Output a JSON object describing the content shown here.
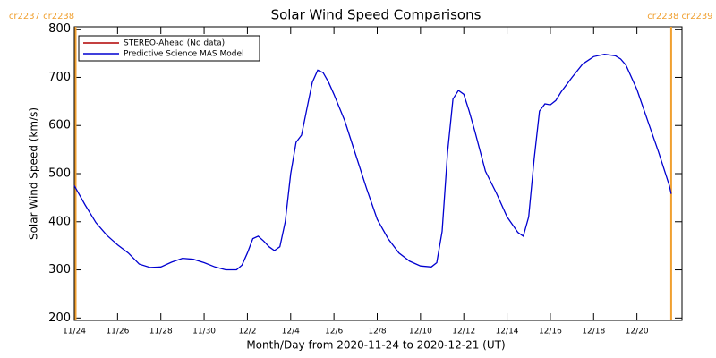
{
  "chart_data": {
    "type": "line",
    "title": "Solar Wind Speed Comparisons",
    "x_label": "Month/Day from 2020-11-24 to 2020-12-21 (UT)",
    "y_label": "Solar Wind Speed (km/s)",
    "xlim": [
      "2020-11-24T00:00",
      "2020-12-22T02:00"
    ],
    "ylim": [
      195,
      805
    ],
    "xticks": [
      {
        "value": "2020-11-24T00:00",
        "label": "11/24"
      },
      {
        "value": "2020-11-26T00:00",
        "label": "11/26"
      },
      {
        "value": "2020-11-28T00:00",
        "label": "11/28"
      },
      {
        "value": "2020-11-30T00:00",
        "label": "11/30"
      },
      {
        "value": "2020-12-02T00:00",
        "label": "12/2"
      },
      {
        "value": "2020-12-04T00:00",
        "label": "12/4"
      },
      {
        "value": "2020-12-06T00:00",
        "label": "12/6"
      },
      {
        "value": "2020-12-08T00:00",
        "label": "12/8"
      },
      {
        "value": "2020-12-10T00:00",
        "label": "12/10"
      },
      {
        "value": "2020-12-12T00:00",
        "label": "12/12"
      },
      {
        "value": "2020-12-14T00:00",
        "label": "12/14"
      },
      {
        "value": "2020-12-16T00:00",
        "label": "12/16"
      },
      {
        "value": "2020-12-18T00:00",
        "label": "12/18"
      },
      {
        "value": "2020-12-20T00:00",
        "label": "12/20"
      }
    ],
    "yticks": [
      200,
      300,
      400,
      500,
      600,
      700,
      800
    ],
    "annotations": [
      {
        "text": "cr2237 cr2238",
        "x": "2020-11-24T01:30",
        "color": "#f0a030"
      },
      {
        "text": "cr2238 cr2239",
        "x": "2020-12-21T14:00",
        "color": "#f0a030"
      }
    ],
    "series": [
      {
        "name": "STEREO-Ahead (No data)",
        "color": "#b00000",
        "x": [],
        "values": []
      },
      {
        "name": "Predictive Science MAS Model",
        "color": "#0000d0",
        "x": [
          "2020-11-24T00:00",
          "2020-11-24T12:00",
          "2020-11-25T00:00",
          "2020-11-25T12:00",
          "2020-11-26T00:00",
          "2020-11-26T12:00",
          "2020-11-27T00:00",
          "2020-11-27T12:00",
          "2020-11-28T00:00",
          "2020-11-28T12:00",
          "2020-11-29T00:00",
          "2020-11-29T12:00",
          "2020-11-30T00:00",
          "2020-11-30T12:00",
          "2020-12-01T00:00",
          "2020-12-01T12:00",
          "2020-12-01T18:00",
          "2020-12-02T00:00",
          "2020-12-02T06:00",
          "2020-12-02T12:00",
          "2020-12-02T18:00",
          "2020-12-03T00:00",
          "2020-12-03T06:00",
          "2020-12-03T12:00",
          "2020-12-03T18:00",
          "2020-12-04T00:00",
          "2020-12-04T06:00",
          "2020-12-04T12:00",
          "2020-12-04T18:00",
          "2020-12-05T00:00",
          "2020-12-05T06:00",
          "2020-12-05T12:00",
          "2020-12-05T18:00",
          "2020-12-06T00:00",
          "2020-12-06T12:00",
          "2020-12-07T00:00",
          "2020-12-07T12:00",
          "2020-12-08T00:00",
          "2020-12-08T12:00",
          "2020-12-09T00:00",
          "2020-12-09T12:00",
          "2020-12-10T00:00",
          "2020-12-10T12:00",
          "2020-12-10T18:00",
          "2020-12-11T00:00",
          "2020-12-11T06:00",
          "2020-12-11T12:00",
          "2020-12-11T18:00",
          "2020-12-12T00:00",
          "2020-12-12T06:00",
          "2020-12-12T12:00",
          "2020-12-13T00:00",
          "2020-12-13T12:00",
          "2020-12-14T00:00",
          "2020-12-14T12:00",
          "2020-12-14T18:00",
          "2020-12-15T00:00",
          "2020-12-15T06:00",
          "2020-12-15T12:00",
          "2020-12-15T18:00",
          "2020-12-16T00:00",
          "2020-12-16T06:00",
          "2020-12-16T12:00",
          "2020-12-17T00:00",
          "2020-12-17T12:00",
          "2020-12-18T00:00",
          "2020-12-18T12:00",
          "2020-12-19T00:00",
          "2020-12-19T06:00",
          "2020-12-19T12:00",
          "2020-12-20T00:00",
          "2020-12-20T12:00",
          "2020-12-21T00:00",
          "2020-12-21T12:00",
          "2020-12-21T14:00"
        ],
        "values": [
          475,
          435,
          398,
          372,
          352,
          335,
          312,
          305,
          306,
          316,
          324,
          322,
          315,
          306,
          300,
          300,
          310,
          335,
          365,
          370,
          360,
          348,
          340,
          348,
          400,
          500,
          565,
          580,
          635,
          690,
          715,
          710,
          690,
          665,
          610,
          540,
          470,
          405,
          365,
          335,
          318,
          308,
          306,
          315,
          380,
          545,
          655,
          673,
          665,
          630,
          590,
          505,
          460,
          410,
          378,
          370,
          410,
          530,
          630,
          645,
          643,
          652,
          670,
          700,
          728,
          743,
          748,
          745,
          738,
          725,
          675,
          610,
          545,
          475,
          458
        ]
      }
    ]
  }
}
